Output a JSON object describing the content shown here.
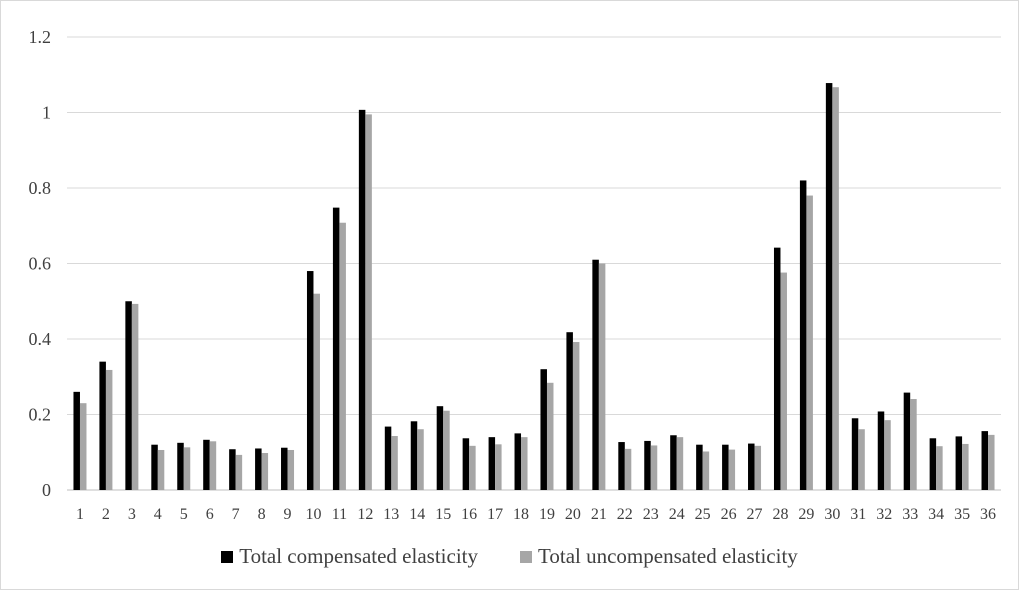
{
  "chart_data": {
    "type": "bar",
    "categories": [
      "1",
      "2",
      "3",
      "4",
      "5",
      "6",
      "7",
      "8",
      "9",
      "10",
      "11",
      "12",
      "13",
      "14",
      "15",
      "16",
      "17",
      "18",
      "19",
      "20",
      "21",
      "22",
      "23",
      "24",
      "25",
      "26",
      "27",
      "28",
      "29",
      "30",
      "31",
      "32",
      "33",
      "34",
      "35",
      "36"
    ],
    "series": [
      {
        "name": "Total compensated elasticity",
        "color": "#000000",
        "values": [
          0.26,
          0.34,
          0.5,
          0.12,
          0.125,
          0.133,
          0.108,
          0.11,
          0.112,
          0.58,
          0.748,
          1.007,
          0.168,
          0.182,
          0.222,
          0.137,
          0.14,
          0.15,
          0.32,
          0.418,
          0.61,
          0.127,
          0.13,
          0.145,
          0.12,
          0.12,
          0.123,
          0.642,
          0.82,
          1.078,
          0.19,
          0.208,
          0.258,
          0.137,
          0.142,
          0.156
        ]
      },
      {
        "name": "Total uncompensated elasticity",
        "color": "#a6a6a6",
        "values": [
          0.23,
          0.318,
          0.493,
          0.106,
          0.113,
          0.129,
          0.093,
          0.098,
          0.106,
          0.52,
          0.708,
          0.995,
          0.143,
          0.161,
          0.21,
          0.117,
          0.121,
          0.14,
          0.284,
          0.392,
          0.6,
          0.109,
          0.118,
          0.14,
          0.102,
          0.107,
          0.117,
          0.576,
          0.78,
          1.067,
          0.161,
          0.185,
          0.241,
          0.116,
          0.122,
          0.146
        ]
      }
    ],
    "y_ticks": [
      "0",
      "0.2",
      "0.4",
      "0.6",
      "0.8",
      "1",
      "1.2"
    ],
    "ylim": [
      0,
      1.2
    ],
    "grid": true,
    "legend_position": "bottom"
  }
}
